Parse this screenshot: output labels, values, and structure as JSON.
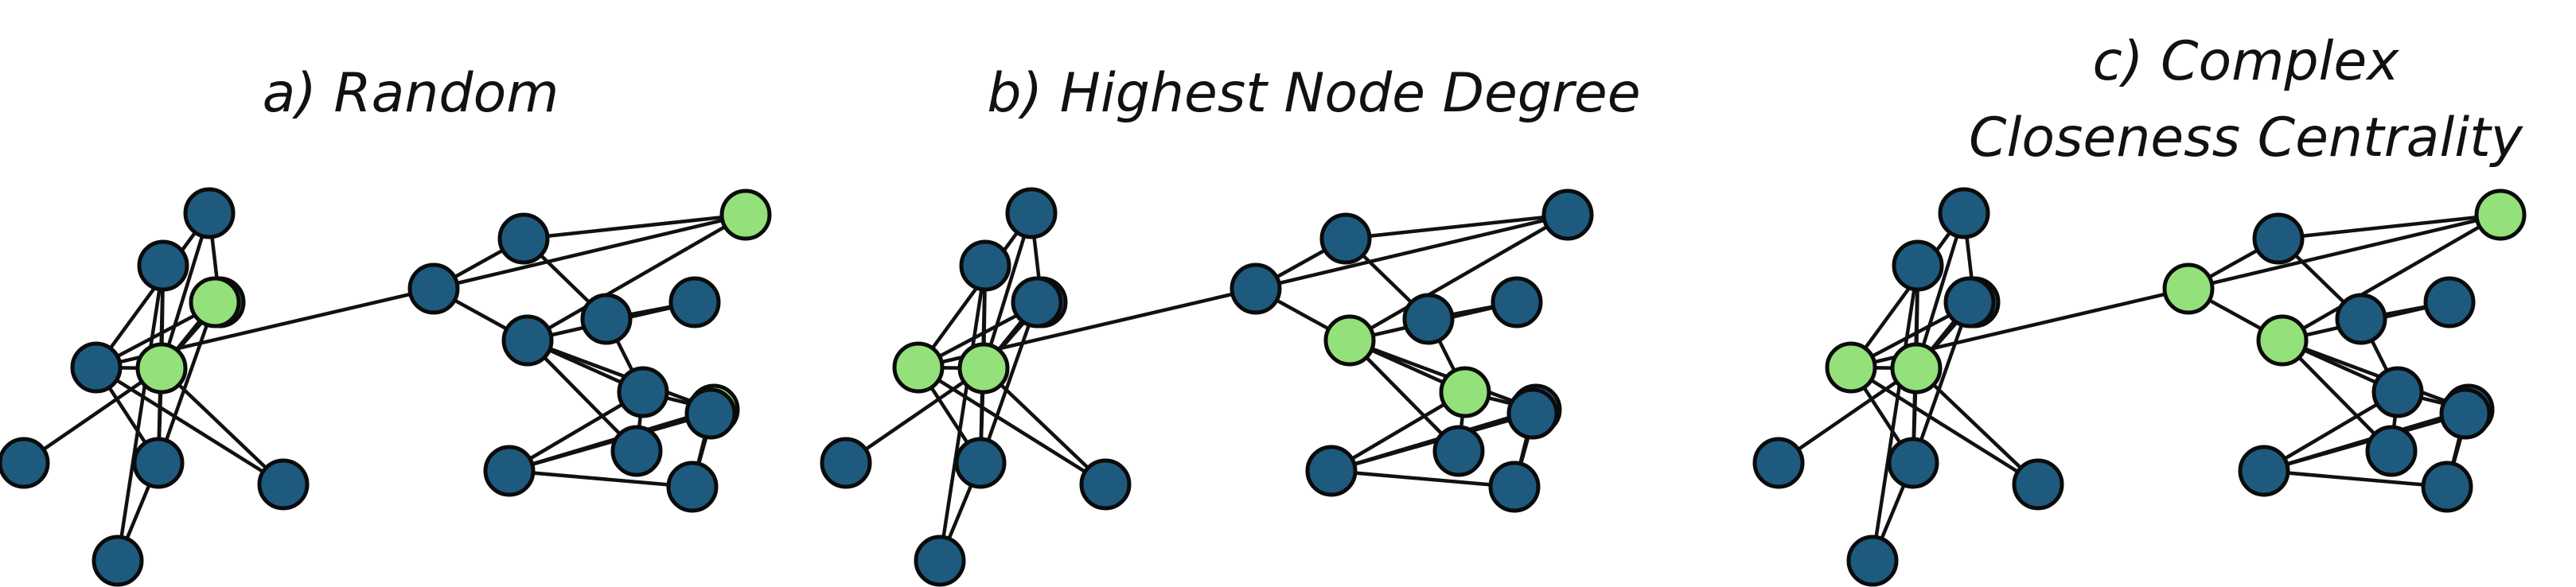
{
  "colors": {
    "node_default": "#1d5a7e",
    "node_selected": "#94e07a",
    "edge": "#111111",
    "node_outline": "#0b0b0b"
  },
  "panels": [
    {
      "id": "a",
      "title_lines": [
        "a) Random"
      ],
      "selected_nodes": [
        5,
        13,
        17,
        9
      ]
    },
    {
      "id": "b",
      "title_lines": [
        "b) Highest Node Degree"
      ],
      "selected_nodes": [
        5,
        3,
        12,
        16
      ]
    },
    {
      "id": "c",
      "title_lines": [
        "c) Complex",
        "Closeness Centrality"
      ],
      "selected_nodes": [
        5,
        3,
        10,
        13,
        12
      ]
    }
  ],
  "graph": {
    "node_count": 22,
    "edges": [
      [
        0,
        2
      ],
      [
        0,
        3
      ],
      [
        0,
        5
      ],
      [
        1,
        5
      ],
      [
        1,
        6
      ],
      [
        1,
        8
      ],
      [
        2,
        3
      ],
      [
        2,
        5
      ],
      [
        3,
        5
      ],
      [
        3,
        7
      ],
      [
        3,
        6
      ],
      [
        4,
        5
      ],
      [
        5,
        6
      ],
      [
        5,
        7
      ],
      [
        5,
        9
      ],
      [
        6,
        8
      ],
      [
        6,
        9
      ],
      [
        3,
        10
      ],
      [
        10,
        11
      ],
      [
        10,
        12
      ],
      [
        10,
        13
      ],
      [
        11,
        13
      ],
      [
        12,
        13
      ],
      [
        11,
        14
      ],
      [
        14,
        15
      ],
      [
        14,
        16
      ],
      [
        15,
        12
      ],
      [
        12,
        17
      ],
      [
        12,
        16
      ],
      [
        12,
        19
      ],
      [
        16,
        17
      ],
      [
        16,
        18
      ],
      [
        16,
        19
      ],
      [
        17,
        18
      ],
      [
        17,
        20
      ],
      [
        17,
        21
      ],
      [
        18,
        20
      ],
      [
        18,
        21
      ],
      [
        20,
        21
      ]
    ]
  }
}
